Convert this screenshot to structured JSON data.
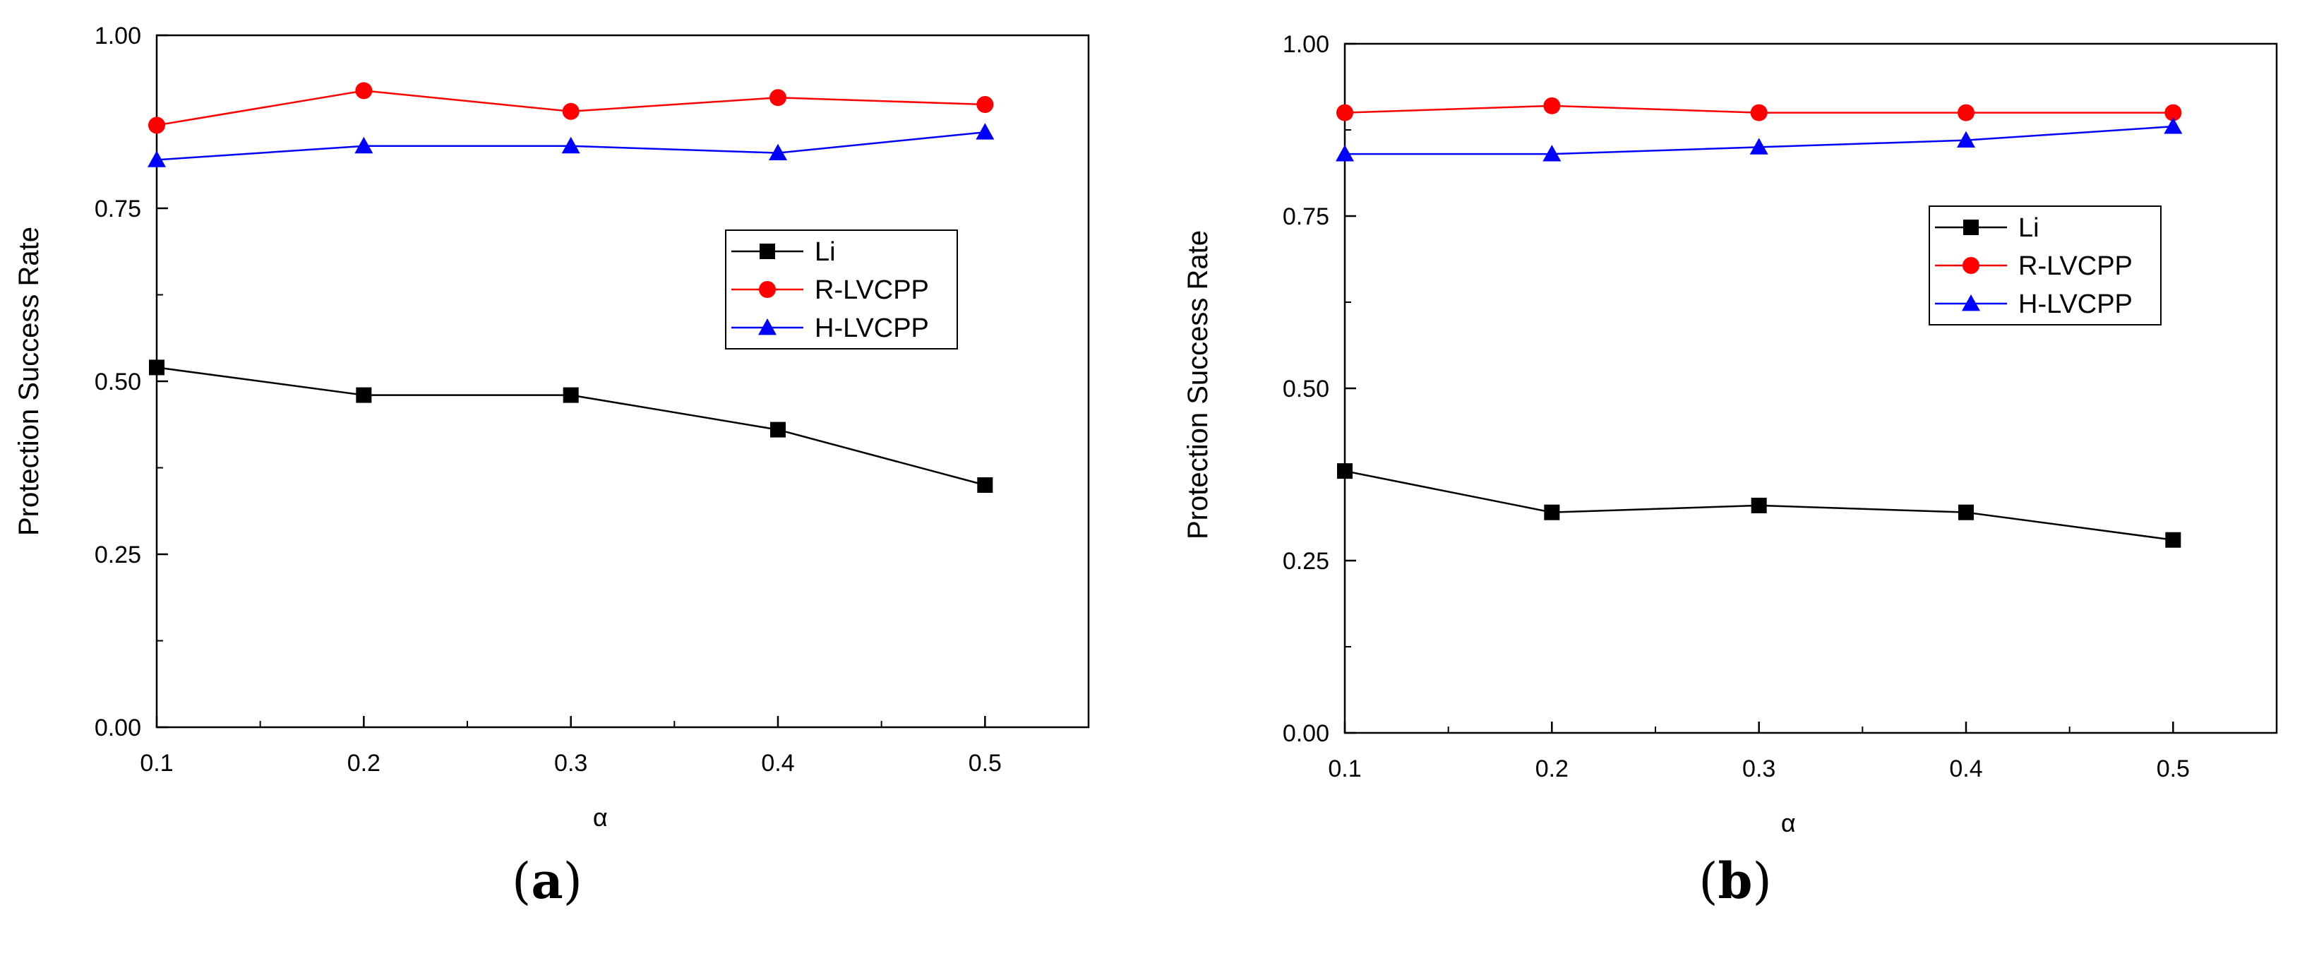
{
  "chart_data": [
    {
      "type": "line",
      "panel_label": "(a)",
      "panel_letter": "a",
      "xlabel": "α",
      "ylabel": "Protection Success Rate",
      "xlim": [
        0.1,
        0.55
      ],
      "ylim": [
        0,
        1
      ],
      "x": [
        0.1,
        0.2,
        0.3,
        0.4,
        0.5
      ],
      "xticks": [
        "0.1",
        "0.2",
        "0.3",
        "0.4",
        "0.5"
      ],
      "yticks": [
        "0.00",
        "0.25",
        "0.50",
        "0.75",
        "1.00"
      ],
      "legend_position": "right-middle",
      "series": [
        {
          "name": "Li",
          "color": "#000000",
          "marker": "square",
          "values": [
            0.52,
            0.48,
            0.48,
            0.43,
            0.35
          ]
        },
        {
          "name": "R-LVCPP",
          "color": "#ff0000",
          "marker": "circle",
          "values": [
            0.87,
            0.92,
            0.89,
            0.91,
            0.9
          ]
        },
        {
          "name": "H-LVCPP",
          "color": "#0000ff",
          "marker": "triangle",
          "values": [
            0.82,
            0.84,
            0.84,
            0.83,
            0.86
          ]
        }
      ]
    },
    {
      "type": "line",
      "panel_label": "(b)",
      "panel_letter": "b",
      "xlabel": "α",
      "ylabel": "Protection Success Rate",
      "xlim": [
        0.1,
        0.55
      ],
      "ylim": [
        0,
        1
      ],
      "x": [
        0.1,
        0.2,
        0.3,
        0.4,
        0.5
      ],
      "xticks": [
        "0.1",
        "0.2",
        "0.3",
        "0.4",
        "0.5"
      ],
      "yticks": [
        "0.00",
        "0.25",
        "0.50",
        "0.75",
        "1.00"
      ],
      "legend_position": "right-middle",
      "series": [
        {
          "name": "Li",
          "color": "#000000",
          "marker": "square",
          "values": [
            0.38,
            0.32,
            0.33,
            0.32,
            0.28
          ]
        },
        {
          "name": "R-LVCPP",
          "color": "#ff0000",
          "marker": "circle",
          "values": [
            0.9,
            0.91,
            0.9,
            0.9,
            0.9
          ]
        },
        {
          "name": "H-LVCPP",
          "color": "#0000ff",
          "marker": "triangle",
          "values": [
            0.84,
            0.84,
            0.85,
            0.86,
            0.88
          ]
        }
      ]
    }
  ]
}
